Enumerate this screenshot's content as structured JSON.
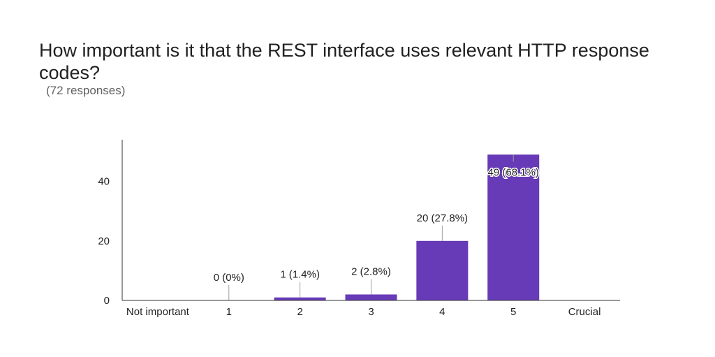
{
  "header": {
    "title": "How important is it that the REST interface uses relevant HTTP response codes?",
    "subtitle": "(72 responses)"
  },
  "colors": {
    "bar": "#673ab7",
    "axis": "#333333",
    "leader": "#9e9e9e"
  },
  "chart_data": {
    "type": "bar",
    "title": "How important is it that the REST interface uses relevant HTTP response codes?",
    "categories": [
      "1",
      "2",
      "3",
      "4",
      "5"
    ],
    "values": [
      0,
      1,
      2,
      20,
      49
    ],
    "data_labels": [
      "0 (0%)",
      "1 (1.4%)",
      "2 (2.8%)",
      "20 (27.8%)",
      "49 (68.1%)"
    ],
    "scale_labels": {
      "low": "Not important",
      "high": "Crucial"
    },
    "ylim": [
      0,
      54
    ],
    "yticks": [
      0,
      20,
      40
    ],
    "xlabel": "",
    "ylabel": "",
    "grid": false,
    "legend": "none"
  }
}
